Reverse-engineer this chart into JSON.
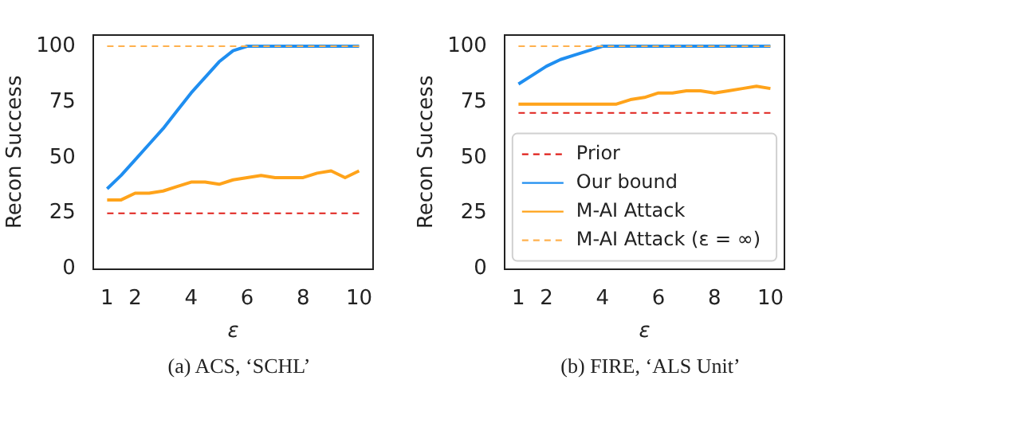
{
  "chart_data": [
    {
      "type": "line",
      "xlabel": "ε",
      "ylabel": "Recon Success",
      "annotations": [
        "(a) ACS, ‘SCHL’"
      ],
      "xlim": [
        0.5,
        10.5
      ],
      "xticks": [
        1,
        2,
        4,
        6,
        8,
        10
      ],
      "ylim": [
        0,
        105
      ],
      "yticks": [
        0,
        25,
        50,
        75,
        100
      ],
      "grid": false,
      "legend": false,
      "marker": "none",
      "x": [
        1,
        1.5,
        2,
        2.5,
        3,
        3.5,
        4,
        4.5,
        5,
        5.5,
        6,
        6.5,
        7,
        7.5,
        8,
        8.5,
        9,
        9.5,
        10
      ],
      "series": [
        {
          "color": "#e0201b",
          "line_style": "dashed",
          "values": [
            25,
            25,
            25,
            25,
            25,
            25,
            25,
            25,
            25,
            25,
            25,
            25,
            25,
            25,
            25,
            25,
            25,
            25,
            25
          ]
        },
        {
          "color": "#1f8ef0",
          "line_style": "solid",
          "values": [
            36,
            42,
            49,
            56,
            63,
            71,
            79,
            86,
            93,
            98,
            100,
            100,
            100,
            100,
            100,
            100,
            100,
            100,
            100
          ]
        },
        {
          "color": "#ffa31a",
          "line_style": "solid",
          "values": [
            31,
            31,
            34,
            34,
            35,
            37,
            39,
            39,
            38,
            40,
            41,
            42,
            41,
            41,
            41,
            43,
            44,
            41,
            44
          ]
        },
        {
          "color": "#ffb14e",
          "line_style": "dashed",
          "values": [
            100,
            100,
            100,
            100,
            100,
            100,
            100,
            100,
            100,
            100,
            100,
            100,
            100,
            100,
            100,
            100,
            100,
            100,
            100
          ]
        }
      ]
    },
    {
      "type": "line",
      "xlabel": "ε",
      "ylabel": "Recon Success",
      "annotations": [
        "(b) FIRE, ‘ALS Unit’"
      ],
      "xlim": [
        0.5,
        10.5
      ],
      "xticks": [
        1,
        2,
        4,
        6,
        8,
        10
      ],
      "ylim": [
        0,
        105
      ],
      "yticks": [
        0,
        25,
        50,
        75,
        100
      ],
      "grid": false,
      "legend": "bottom left",
      "marker": "none",
      "x": [
        1,
        1.5,
        2,
        2.5,
        3,
        3.5,
        4,
        4.5,
        5,
        5.5,
        6,
        6.5,
        7,
        7.5,
        8,
        8.5,
        9,
        9.5,
        10
      ],
      "series": [
        {
          "name": "Prior",
          "color": "#e0201b",
          "line_style": "dashed",
          "values": [
            70,
            70,
            70,
            70,
            70,
            70,
            70,
            70,
            70,
            70,
            70,
            70,
            70,
            70,
            70,
            70,
            70,
            70,
            70
          ]
        },
        {
          "name": "Our bound",
          "color": "#1f8ef0",
          "line_style": "solid",
          "values": [
            83,
            87,
            91,
            94,
            96,
            98,
            100,
            100,
            100,
            100,
            100,
            100,
            100,
            100,
            100,
            100,
            100,
            100,
            100
          ]
        },
        {
          "name": "M-AI Attack",
          "color": "#ffa31a",
          "line_style": "solid",
          "values": [
            74,
            74,
            74,
            74,
            74,
            74,
            74,
            74,
            76,
            77,
            79,
            79,
            80,
            80,
            79,
            80,
            81,
            82,
            81
          ]
        },
        {
          "name": "M-AI Attack (ε = ∞)",
          "color": "#ffb14e",
          "line_style": "dashed",
          "values": [
            100,
            100,
            100,
            100,
            100,
            100,
            100,
            100,
            100,
            100,
            100,
            100,
            100,
            100,
            100,
            100,
            100,
            100,
            100
          ]
        }
      ]
    }
  ]
}
